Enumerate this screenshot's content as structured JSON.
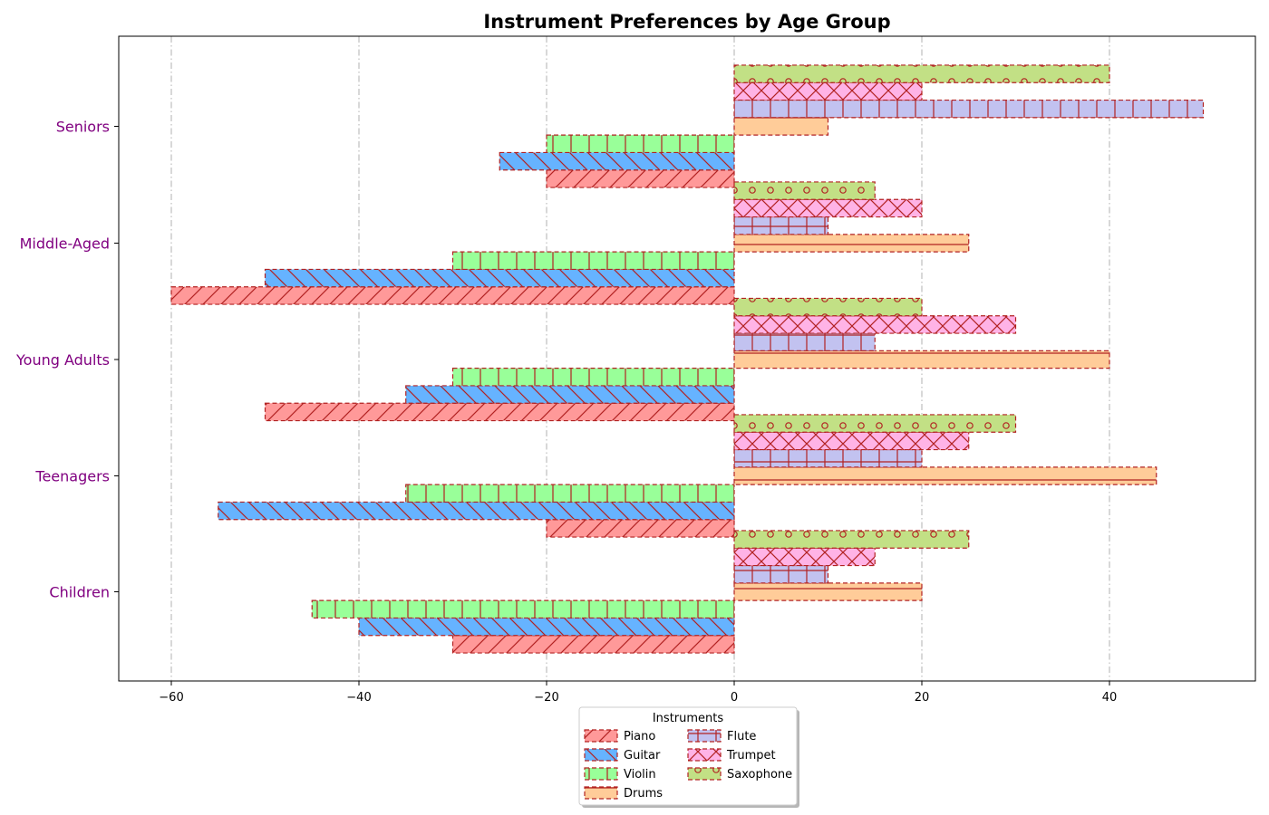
{
  "chart_data": {
    "type": "bar",
    "orientation": "horizontal",
    "title": "Instrument Preferences by Age Group",
    "xlabel": "",
    "ylabel": "",
    "categories": [
      "Children",
      "Teenagers",
      "Young Adults",
      "Middle-Aged",
      "Seniors"
    ],
    "xlim": [
      -65,
      55
    ],
    "xticks": [
      -60,
      -40,
      -20,
      0,
      20,
      40
    ],
    "grid": "x-axis vertical dash-dot lines",
    "ytick_color": "#800080",
    "edge_color": "#b22222",
    "legend": {
      "title": "Instruments",
      "placement": "bottom-center",
      "columns": 2
    },
    "series": [
      {
        "name": "Piano",
        "color": "#ff9999",
        "hatch": "forward-slash",
        "values": [
          -30,
          -20,
          -50,
          -60,
          -20
        ]
      },
      {
        "name": "Guitar",
        "color": "#66b3ff",
        "hatch": "back-slash",
        "values": [
          -40,
          -55,
          -35,
          -50,
          -25
        ]
      },
      {
        "name": "Violin",
        "color": "#99ff99",
        "hatch": "vertical",
        "values": [
          -45,
          -35,
          -30,
          -30,
          -20
        ]
      },
      {
        "name": "Drums",
        "color": "#ffcc99",
        "hatch": "horizontal",
        "values": [
          20,
          45,
          40,
          25,
          10
        ]
      },
      {
        "name": "Flute",
        "color": "#c2c2f0",
        "hatch": "plus",
        "values": [
          10,
          20,
          15,
          10,
          50
        ]
      },
      {
        "name": "Trumpet",
        "color": "#ffb3e6",
        "hatch": "cross",
        "values": [
          15,
          25,
          30,
          20,
          20
        ]
      },
      {
        "name": "Saxophone",
        "color": "#c2e085",
        "hatch": "circles",
        "values": [
          25,
          30,
          20,
          15,
          40
        ]
      }
    ]
  }
}
